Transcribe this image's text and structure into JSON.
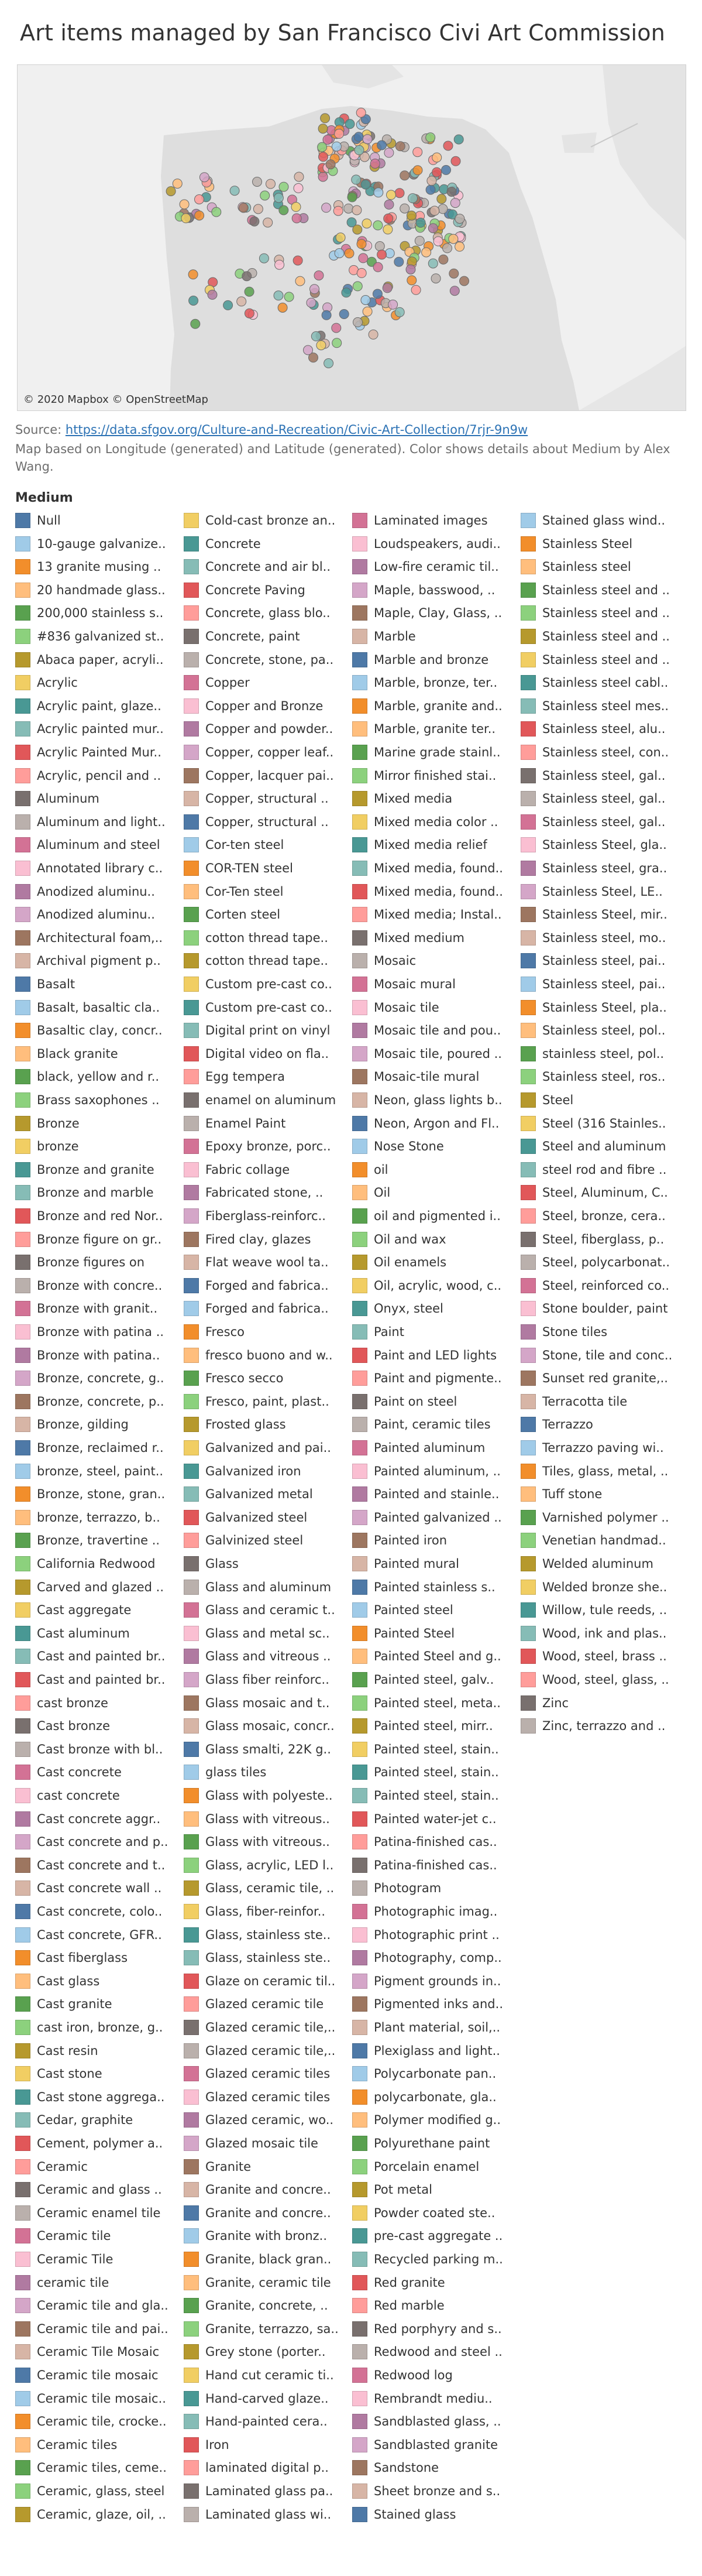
{
  "title": "Art items managed by San Francisco Civi Art Commission",
  "map": {
    "credit": "© 2020 Mapbox © OpenStreetMap"
  },
  "caption": {
    "source_label": "Source: ",
    "source_link": "https://data.sfgov.org/Culture-and-Recreation/Civic-Art-Collection/7rjr-9n9w",
    "note": "Map based on Longitude (generated) and Latitude (generated).  Color shows details about Medium by Alex Wang."
  },
  "colors": {
    "background": "#ffffff",
    "map_background": "#f0f0f0",
    "land": "#dedede",
    "link": "#2d73b5"
  },
  "chart_data": {
    "type": "scatter",
    "title": "Art items managed by San Francisco Civi Art Commission",
    "legend_title": "Medium",
    "legend": [
      "Null",
      "10-gauge galvanize..",
      "13 granite musing ..",
      "20 handmade glass..",
      "200,000 stainless s..",
      "#836 galvanized st..",
      "Abaca paper, acryli..",
      "Acrylic",
      "Acrylic paint, glaze..",
      "Acrylic painted mur..",
      "Acrylic Painted Mur..",
      "Acrylic, pencil and ..",
      "Aluminum",
      "Aluminum and light..",
      "Aluminum and steel",
      "Annotated library c..",
      "Anodized aluminu..",
      "Anodized aluminu..",
      "Architectural foam,..",
      "Archival pigment p..",
      "Basalt",
      "Basalt, basaltic cla..",
      "Basaltic clay, concr..",
      "Black granite",
      "black, yellow and r..",
      "Brass saxophones ..",
      "Bronze",
      "bronze",
      "Bronze and granite",
      "Bronze and marble",
      "Bronze and red Nor..",
      "Bronze figure on gr..",
      "Bronze figures on",
      "Bronze with concre..",
      "Bronze with granit..",
      "Bronze with patina ..",
      "Bronze with patina..",
      "Bronze, concrete, g..",
      "Bronze, concrete, p..",
      "Bronze, gilding",
      "Bronze, reclaimed r..",
      "bronze, steel, paint..",
      "Bronze, stone, gran..",
      "bronze, terrazzo, b..",
      "Bronze, travertine ..",
      "California Redwood",
      "Carved and glazed ..",
      "Cast aggregate",
      "Cast aluminum",
      "Cast and painted br..",
      "Cast and painted br..",
      "cast bronze",
      "Cast bronze",
      "Cast bronze with bl..",
      "Cast concrete",
      "cast concrete",
      "Cast concrete aggr..",
      "Cast concrete and p..",
      "Cast concrete and t..",
      "Cast concrete wall ..",
      "Cast concrete, colo..",
      "Cast concrete, GFR..",
      "Cast fiberglass",
      "Cast glass",
      "Cast granite",
      "cast iron, bronze, g..",
      "Cast resin",
      "Cast stone",
      "Cast stone aggrega..",
      "Cedar, graphite",
      "Cement, polymer a..",
      "Ceramic",
      "Ceramic and glass ..",
      "Ceramic enamel tile",
      "Ceramic tile",
      "Ceramic Tile",
      "ceramic tile",
      "Ceramic tile and gla..",
      "Ceramic tile and pai..",
      "Ceramic Tile Mosaic",
      "Ceramic tile mosaic",
      "Ceramic tile mosaic..",
      "Ceramic tile, crocke..",
      "Ceramic tiles",
      "Ceramic tiles, ceme..",
      "Ceramic, glass, steel",
      "Ceramic, glaze, oil, ..",
      "Cold-cast bronze an..",
      "Concrete",
      "Concrete and air bl..",
      "Concrete Paving",
      "Concrete, glass blo..",
      "Concrete, paint",
      "Concrete, stone, pa..",
      "Copper",
      "Copper and Bronze",
      "Copper and powder..",
      "Copper, copper leaf..",
      "Copper, lacquer pai..",
      "Copper, structural ..",
      "Copper, structural ..",
      "Cor-ten steel",
      "COR-TEN steel",
      "Cor-Ten steel",
      "Corten steel",
      "cotton thread tape..",
      "cotton thread tape..",
      "Custom pre-cast co..",
      "Custom pre-cast co..",
      "Digital print on vinyl",
      "Digital video on fla..",
      "Egg tempera",
      "enamel on aluminum",
      "Enamel Paint",
      "Epoxy bronze, porc..",
      "Fabric collage",
      "Fabricated stone, ..",
      "Fiberglass-reinforc..",
      "Fired clay, glazes",
      "Flat weave wool ta..",
      "Forged and fabrica..",
      "Forged and fabrica..",
      "Fresco",
      "fresco buono and w..",
      "Fresco secco",
      "Fresco, paint, plast..",
      "Frosted glass",
      "Galvanized and pai..",
      "Galvanized iron",
      "Galvanized metal",
      "Galvanized steel",
      "Galvinized steel",
      "Glass",
      "Glass and aluminum",
      "Glass and ceramic t..",
      "Glass and metal sc..",
      "Glass and vitreous ..",
      "Glass fiber reinforc..",
      "Glass mosaic and t..",
      "Glass mosaic, concr..",
      "Glass smalti, 22K g..",
      "glass tiles",
      "Glass with polyeste..",
      "Glass with vitreous..",
      "Glass with vitreous..",
      "Glass, acrylic, LED l..",
      "Glass, ceramic tile, ..",
      "Glass, fiber-reinfor..",
      "Glass, stainless ste..",
      "Glass, stainless ste..",
      "Glaze on ceramic til..",
      "Glazed ceramic tile",
      "Glazed ceramic tile,..",
      "Glazed ceramic tile,..",
      "Glazed ceramic tiles",
      "Glazed ceramic tiles",
      "Glazed ceramic, wo..",
      "Glazed mosaic tile",
      "Granite",
      "Granite and concre..",
      "Granite and concre..",
      "Granite with bronz..",
      "Granite, black gran..",
      "Granite, ceramic tile",
      "Granite, concrete, ..",
      "Granite, terrazzo, sa..",
      "Grey stone (porter..",
      "Hand cut ceramic ti..",
      "Hand-carved glaze..",
      "Hand-painted cera..",
      "Iron",
      "laminated digital p..",
      "Laminated glass pa..",
      "Laminated glass wi..",
      "Laminated images",
      "Loudspeakers, audi..",
      "Low-fire ceramic til..",
      "Maple, basswood, ..",
      "Maple, Clay, Glass, ..",
      "Marble",
      "Marble and bronze",
      "Marble, bronze, ter..",
      "Marble, granite and..",
      "Marble, granite ter..",
      "Marine grade stainl..",
      "Mirror finished stai..",
      "Mixed media",
      "Mixed media color ..",
      "Mixed media relief",
      "Mixed media, found..",
      "Mixed media, found..",
      "Mixed media; Instal..",
      "Mixed medium",
      "Mosaic",
      "Mosaic mural",
      "Mosaic tile",
      "Mosaic tile and pou..",
      "Mosaic tile, poured ..",
      "Mosaic-tile mural",
      "Neon, glass lights b..",
      "Neon, Argon and Fl..",
      "Nose Stone",
      "oil",
      "Oil",
      "oil and pigmented i..",
      "Oil and wax",
      "Oil enamels",
      "Oil, acrylic, wood, c..",
      "Onyx, steel",
      "Paint",
      "Paint and LED lights",
      "Paint and pigmente..",
      "Paint on steel",
      "Paint, ceramic tiles",
      "Painted aluminum",
      "Painted aluminum, ..",
      "Painted and stainle..",
      "Painted galvanized ..",
      "Painted iron",
      "Painted mural",
      "Painted stainless s..",
      "Painted steel",
      "Painted Steel",
      "Painted Steel and g..",
      "Painted steel, galv..",
      "Painted steel, meta..",
      "Painted steel, mirr..",
      "Painted steel, stain..",
      "Painted steel, stain..",
      "Painted steel, stain..",
      "Painted water-jet c..",
      "Patina-finished cas..",
      "Patina-finished cas..",
      "Photogram",
      "Photographic imag..",
      "Photographic print ..",
      "Photography, comp..",
      "Pigment grounds in..",
      "Pigmented inks and..",
      "Plant material, soil,..",
      "Plexiglass and light..",
      "Polycarbonate pan..",
      "polycarbonate, gla..",
      "Polymer modified g..",
      "Polyurethane paint",
      "Porcelain enamel",
      "Pot metal",
      "Powder coated ste..",
      "pre-cast aggregate ..",
      "Recycled parking m..",
      "Red granite",
      "Red marble",
      "Red porphyry and s..",
      "Redwood and steel ..",
      "Redwood log",
      "Rembrandt mediu..",
      "Sandblasted glass, ..",
      "Sandblasted granite",
      "Sandstone",
      "Sheet bronze and s..",
      "Stained glass",
      "Stained glass wind..",
      "Stainless Steel",
      "Stainless steel",
      "Stainless steel and ..",
      "Stainless steel and ..",
      "Stainless steel and ..",
      "Stainless steel and ..",
      "Stainless steel cabl..",
      "Stainless steel mes..",
      "Stainless steel, alu..",
      "Stainless steel, con..",
      "Stainless steel, gal..",
      "Stainless steel, gal..",
      "Stainless steel, gal..",
      "Stainless Steel, gla..",
      "Stainless steel, gra..",
      "Stainless Steel, LE..",
      "Stainless Steel, mir..",
      "Stainless steel, mo..",
      "Stainless steel, pai..",
      "Stainless steel, pai..",
      "Stainless Steel, pla..",
      "Stainless steel, pol..",
      "stainless steel, pol..",
      "Stainless steel, ros..",
      "Steel",
      "Steel (316 Stainles..",
      "Steel and aluminum",
      "steel rod and fibre ..",
      "Steel, Aluminum, C..",
      "Steel, bronze, cera..",
      "Steel, fiberglass, p..",
      "Steel, polycarbonat..",
      "Steel, reinforced co..",
      "Stone boulder, paint",
      "Stone tiles",
      "Stone, tile and conc..",
      "Sunset red granite,..",
      "Terracotta tile",
      "Terrazzo",
      "Terrazzo paving wi..",
      "Tiles, glass, metal, ..",
      "Tuff stone",
      "Varnished polymer ..",
      "Venetian handmad..",
      "Welded aluminum",
      "Welded bronze she..",
      "Willow, tule reeds, ..",
      "Wood, ink and plas..",
      "Wood, steel, brass ..",
      "Wood, steel, glass, ..",
      "Zinc",
      "Zinc, terrazzo and .."
    ],
    "palette": [
      "#4e79a7",
      "#a0cbe8",
      "#f28e2b",
      "#ffbe7d",
      "#59a14f",
      "#8cd17d",
      "#b6992d",
      "#f1ce63",
      "#499894",
      "#86bcb6",
      "#e15759",
      "#ff9d9a",
      "#79706e",
      "#bab0ac",
      "#d37295",
      "#fabfd2",
      "#b07aa1",
      "#d4a6c8",
      "#9d7660",
      "#d7b5a6"
    ]
  }
}
